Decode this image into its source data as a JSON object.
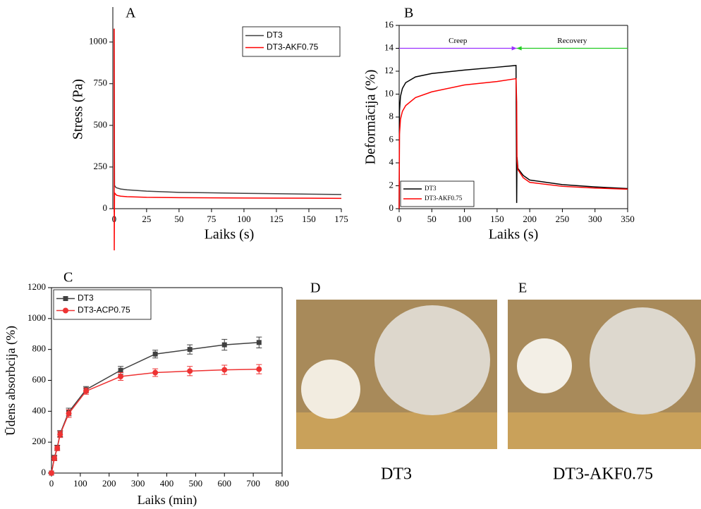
{
  "chart_data": [
    {
      "type": "line",
      "panel_label": "A",
      "xlabel": "Laiks (s)",
      "ylabel": "Stress (Pa)",
      "xlim": [
        -1,
        175
      ],
      "ylim": [
        0,
        1210
      ],
      "xticks": [
        0,
        25,
        50,
        75,
        100,
        125,
        150,
        175
      ],
      "yticks": [
        0,
        250,
        500,
        750,
        1000
      ],
      "frame": false,
      "legend": "upper right",
      "series": [
        {
          "name": "DT3",
          "color": "#404040",
          "x": [
            0,
            0.3,
            1,
            2,
            5,
            10,
            25,
            50,
            75,
            100,
            125,
            150,
            175
          ],
          "values": [
            1080,
            140,
            130,
            125,
            118,
            113,
            105,
            98,
            95,
            92,
            90,
            87,
            85
          ]
        },
        {
          "name": "DT3-AKF0.75",
          "color": "#ff0000",
          "x": [
            0,
            0.1,
            0.3,
            1,
            2,
            5,
            10,
            25,
            50,
            100,
            150,
            175
          ],
          "values": [
            1080,
            -250,
            95,
            88,
            80,
            75,
            72,
            68,
            66,
            64,
            63,
            62
          ]
        }
      ]
    },
    {
      "type": "line",
      "panel_label": "B",
      "xlabel": "Laiks (s)",
      "ylabel": "Deformācija (%)",
      "xlim": [
        0,
        350
      ],
      "ylim": [
        0,
        16
      ],
      "xticks": [
        0,
        50,
        100,
        150,
        200,
        250,
        300,
        350
      ],
      "yticks": [
        0,
        2,
        4,
        6,
        8,
        10,
        12,
        14,
        16
      ],
      "frame": true,
      "legend": "lower left",
      "annotations": [
        {
          "text": "Creep",
          "x": [
            0,
            180
          ],
          "y": 14,
          "color": "#9b30ff"
        },
        {
          "text": "Recovery",
          "x": [
            350,
            180
          ],
          "y": 14,
          "color": "#22cc22"
        }
      ],
      "series": [
        {
          "name": "DT3",
          "color": "#000000",
          "x": [
            0,
            0.5,
            2,
            5,
            10,
            25,
            50,
            100,
            150,
            179,
            180,
            180.5,
            182,
            190,
            200,
            250,
            300,
            350
          ],
          "values": [
            0,
            8.5,
            9.8,
            10.5,
            11,
            11.5,
            11.8,
            12.1,
            12.35,
            12.5,
            0.5,
            4.5,
            3.5,
            2.9,
            2.5,
            2.1,
            1.9,
            1.75
          ]
        },
        {
          "name": "DT3-AKF0.75",
          "color": "#ff0000",
          "x": [
            0,
            0.5,
            2,
            5,
            10,
            25,
            50,
            100,
            150,
            179,
            180,
            180.5,
            182,
            190,
            200,
            250,
            300,
            350
          ],
          "values": [
            0,
            6.5,
            7.8,
            8.5,
            9,
            9.7,
            10.2,
            10.8,
            11.1,
            11.35,
            9.3,
            4.2,
            3.4,
            2.7,
            2.3,
            1.95,
            1.8,
            1.7
          ]
        }
      ]
    },
    {
      "type": "line",
      "panel_label": "C",
      "xlabel": "Laiks (min)",
      "ylabel": "Ūdens absorbcija (%)",
      "xlim": [
        0,
        800
      ],
      "ylim": [
        0,
        1200
      ],
      "xticks": [
        0,
        100,
        200,
        300,
        400,
        500,
        600,
        700,
        800
      ],
      "yticks": [
        0,
        200,
        400,
        600,
        800,
        1000,
        1200
      ],
      "frame": true,
      "legend": "upper left",
      "series": [
        {
          "name": "DT3",
          "color": "#404040",
          "marker": "square",
          "x": [
            0,
            10,
            20,
            30,
            60,
            120,
            240,
            360,
            480,
            600,
            720
          ],
          "values": [
            0,
            100,
            165,
            255,
            395,
            540,
            665,
            770,
            800,
            830,
            845
          ],
          "errors": [
            0,
            15,
            15,
            20,
            25,
            20,
            25,
            25,
            30,
            35,
            35
          ]
        },
        {
          "name": "DT3-ACP0.75",
          "color": "#ee3333",
          "marker": "circle",
          "x": [
            0,
            10,
            20,
            30,
            60,
            120,
            240,
            360,
            480,
            600,
            720
          ],
          "values": [
            0,
            95,
            160,
            250,
            385,
            530,
            625,
            650,
            660,
            668,
            672
          ],
          "errors": [
            0,
            15,
            15,
            20,
            25,
            20,
            25,
            25,
            30,
            30,
            30
          ]
        }
      ]
    }
  ],
  "photos": [
    {
      "label": "D",
      "caption": "DT3"
    },
    {
      "label": "E",
      "caption": "DT3-AKF0.75"
    }
  ]
}
